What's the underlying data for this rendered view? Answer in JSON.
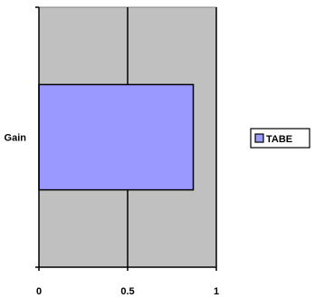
{
  "chart_data": {
    "type": "bar",
    "orientation": "horizontal",
    "categories": [
      "Gain"
    ],
    "series": [
      {
        "name": "TABE",
        "values": [
          0.87
        ]
      }
    ],
    "xlim": [
      0,
      1
    ],
    "x_ticks": [
      "0",
      "0.5",
      "1"
    ],
    "grid": true,
    "legend_position": "right"
  },
  "colors": {
    "plot_background": "#c0c0c0",
    "bar_fill": "#9999ff",
    "grid": "#000000"
  }
}
